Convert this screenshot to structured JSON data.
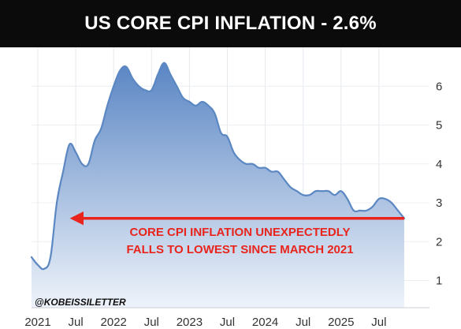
{
  "title": "US CORE CPI INFLATION - 2.6%",
  "watermark": "@KOBEISSILETTER",
  "colors": {
    "line": "#5b87c2",
    "area_top": "#5a86c4",
    "area_bottom": "#eef3fa",
    "annotation": "#e8241c",
    "title_bg": "#0b0b0b"
  },
  "chart_data": {
    "type": "area",
    "title": "US CORE CPI INFLATION - 2.6%",
    "xlabel": "",
    "ylabel": "",
    "ylim": [
      0.3,
      7.0
    ],
    "xlim": [
      "2020-12",
      "2026-03"
    ],
    "grid": true,
    "legend": "none",
    "x_ticks": [
      {
        "label": "2021",
        "date": "2021-01"
      },
      {
        "label": "Jul",
        "date": "2021-07"
      },
      {
        "label": "2022",
        "date": "2022-01"
      },
      {
        "label": "Jul",
        "date": "2022-07"
      },
      {
        "label": "2023",
        "date": "2023-01"
      },
      {
        "label": "Jul",
        "date": "2023-07"
      },
      {
        "label": "2024",
        "date": "2024-01"
      },
      {
        "label": "Jul",
        "date": "2024-07"
      },
      {
        "label": "2025",
        "date": "2025-01"
      },
      {
        "label": "Jul",
        "date": "2025-07"
      }
    ],
    "y_ticks": [
      1,
      2,
      3,
      4,
      5,
      6
    ],
    "series": [
      {
        "points": [
          [
            "2020-12",
            1.6
          ],
          [
            "2021-01",
            1.4
          ],
          [
            "2021-02",
            1.3
          ],
          [
            "2021-03",
            1.6
          ],
          [
            "2021-04",
            3.0
          ],
          [
            "2021-05",
            3.8
          ],
          [
            "2021-06",
            4.5
          ],
          [
            "2021-07",
            4.3
          ],
          [
            "2021-08",
            4.0
          ],
          [
            "2021-09",
            4.0
          ],
          [
            "2021-10",
            4.6
          ],
          [
            "2021-11",
            4.9
          ],
          [
            "2021-12",
            5.5
          ],
          [
            "2022-01",
            6.0
          ],
          [
            "2022-02",
            6.4
          ],
          [
            "2022-03",
            6.5
          ],
          [
            "2022-04",
            6.2
          ],
          [
            "2022-05",
            6.0
          ],
          [
            "2022-06",
            5.9
          ],
          [
            "2022-07",
            5.9
          ],
          [
            "2022-08",
            6.3
          ],
          [
            "2022-09",
            6.6
          ],
          [
            "2022-10",
            6.3
          ],
          [
            "2022-11",
            6.0
          ],
          [
            "2022-12",
            5.7
          ],
          [
            "2023-01",
            5.6
          ],
          [
            "2023-02",
            5.5
          ],
          [
            "2023-03",
            5.6
          ],
          [
            "2023-04",
            5.5
          ],
          [
            "2023-05",
            5.3
          ],
          [
            "2023-06",
            4.8
          ],
          [
            "2023-07",
            4.7
          ],
          [
            "2023-08",
            4.3
          ],
          [
            "2023-09",
            4.1
          ],
          [
            "2023-10",
            4.0
          ],
          [
            "2023-11",
            4.0
          ],
          [
            "2023-12",
            3.9
          ],
          [
            "2024-01",
            3.9
          ],
          [
            "2024-02",
            3.8
          ],
          [
            "2024-03",
            3.8
          ],
          [
            "2024-04",
            3.6
          ],
          [
            "2024-05",
            3.4
          ],
          [
            "2024-06",
            3.3
          ],
          [
            "2024-07",
            3.2
          ],
          [
            "2024-08",
            3.2
          ],
          [
            "2024-09",
            3.3
          ],
          [
            "2024-10",
            3.3
          ],
          [
            "2024-11",
            3.3
          ],
          [
            "2024-12",
            3.2
          ],
          [
            "2025-01",
            3.3
          ],
          [
            "2025-02",
            3.1
          ],
          [
            "2025-03",
            2.8
          ],
          [
            "2025-04",
            2.8
          ],
          [
            "2025-05",
            2.8
          ],
          [
            "2025-06",
            2.9
          ],
          [
            "2025-07",
            3.1
          ],
          [
            "2025-08",
            3.1
          ],
          [
            "2025-09",
            3.0
          ],
          [
            "2025-10",
            2.8
          ],
          [
            "2025-11",
            2.6
          ]
        ]
      }
    ],
    "annotations": {
      "arrow": {
        "from": "2025-11",
        "to": "2021-06",
        "y": 2.6
      },
      "text_lines": [
        "CORE CPI INFLATION UNEXPECTEDLY",
        "FALLS TO LOWEST SINCE MARCH 2021"
      ],
      "text_anchor": {
        "date": "2023-09",
        "y": 2.15
      }
    }
  }
}
